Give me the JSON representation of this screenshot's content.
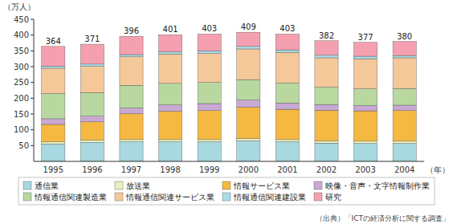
{
  "chart_data": {
    "type": "bar",
    "stacked": true,
    "grid": false,
    "legend": "bottom",
    "ylabel": "（万人）",
    "xlabel": "（年）",
    "source": "（出典）「ICTの経済分析に関する調査」",
    "categories": [
      "1995",
      "1996",
      "1997",
      "1998",
      "1999",
      "2000",
      "2001",
      "2002",
      "2003",
      "2004"
    ],
    "series": [
      {
        "name": "通信業",
        "color": "#a8d8e0",
        "values": [
          55,
          60,
          62,
          62,
          62,
          65,
          62,
          58,
          57,
          57
        ]
      },
      {
        "name": "放送業",
        "color": "#e8f0c0",
        "values": [
          7,
          7,
          7,
          7,
          7,
          7,
          7,
          7,
          7,
          7
        ]
      },
      {
        "name": "情報サービス業",
        "color": "#f5b942",
        "values": [
          55,
          58,
          82,
          90,
          92,
          100,
          96,
          97,
          96,
          97
        ]
      },
      {
        "name": "映像・音声・文字情報制作業",
        "color": "#c9a8d4",
        "values": [
          18,
          18,
          18,
          20,
          22,
          22,
          20,
          18,
          17,
          17
        ]
      },
      {
        "name": "情報通信関連製造業",
        "color": "#b8d8a0",
        "values": [
          80,
          75,
          72,
          68,
          67,
          65,
          63,
          55,
          53,
          53
        ]
      },
      {
        "name": "情報通信関連サービス業",
        "color": "#f5c89a",
        "values": [
          80,
          83,
          90,
          93,
          92,
          97,
          97,
          93,
          95,
          97
        ]
      },
      {
        "name": "情報通信関連建設業",
        "color": "#a8dce6",
        "values": [
          7,
          7,
          7,
          7,
          8,
          8,
          8,
          8,
          8,
          7
        ]
      },
      {
        "name": "研究",
        "color": "#f5a0b0",
        "values": [
          62,
          63,
          58,
          54,
          53,
          45,
          50,
          46,
          44,
          45
        ]
      }
    ],
    "totals": [
      364,
      371,
      396,
      401,
      403,
      409,
      403,
      382,
      377,
      380
    ],
    "ylim": [
      0,
      450
    ],
    "yticks": [
      50,
      100,
      150,
      200,
      250,
      300,
      350,
      400,
      450
    ]
  }
}
